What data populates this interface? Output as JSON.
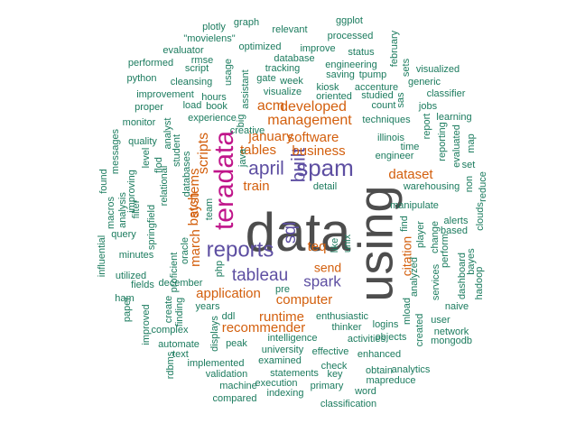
{
  "chart_data": {
    "type": "wordcloud",
    "colors": {
      "big": "#4d4d4d",
      "magenta": "#c0158a",
      "purple": "#5e4fa2",
      "orange": "#d35f0d",
      "teal": "#1b7b5e"
    },
    "words": [
      {
        "text": "data",
        "tier": "big"
      },
      {
        "text": "using",
        "tier": "big"
      },
      {
        "text": "teradata",
        "tier": "magenta"
      },
      {
        "text": "spam",
        "tier": "purple"
      },
      {
        "text": "reports",
        "tier": "purple"
      },
      {
        "text": "built",
        "tier": "purple"
      },
      {
        "text": "april",
        "tier": "purple"
      },
      {
        "text": "sql",
        "tier": "purple"
      },
      {
        "text": "tableau",
        "tier": "purple"
      },
      {
        "text": "spark",
        "tier": "purple"
      },
      {
        "text": "developed",
        "tier": "orange"
      },
      {
        "text": "management",
        "tier": "orange"
      },
      {
        "text": "acm",
        "tier": "orange"
      },
      {
        "text": "january",
        "tier": "orange"
      },
      {
        "text": "software",
        "tier": "orange"
      },
      {
        "text": "business",
        "tier": "orange"
      },
      {
        "text": "tables",
        "tier": "orange"
      },
      {
        "text": "scripts",
        "tier": "orange"
      },
      {
        "text": "dataset",
        "tier": "orange"
      },
      {
        "text": "train",
        "tier": "orange"
      },
      {
        "text": "systems",
        "tier": "orange"
      },
      {
        "text": "batch",
        "tier": "orange"
      },
      {
        "text": "march",
        "tier": "orange"
      },
      {
        "text": "teq",
        "tier": "orange"
      },
      {
        "text": "send",
        "tier": "orange"
      },
      {
        "text": "citation",
        "tier": "orange"
      },
      {
        "text": "application",
        "tier": "orange"
      },
      {
        "text": "computer",
        "tier": "orange"
      },
      {
        "text": "runtime",
        "tier": "orange"
      },
      {
        "text": "recommender",
        "tier": "orange"
      },
      {
        "text": "plotly",
        "tier": "teal"
      },
      {
        "text": "graph",
        "tier": "teal"
      },
      {
        "text": "relevant",
        "tier": "teal"
      },
      {
        "text": "ggplot",
        "tier": "teal"
      },
      {
        "text": "\"movielens\"",
        "tier": "teal"
      },
      {
        "text": "optimized",
        "tier": "teal"
      },
      {
        "text": "improve",
        "tier": "teal"
      },
      {
        "text": "processed",
        "tier": "teal"
      },
      {
        "text": "evaluator",
        "tier": "teal"
      },
      {
        "text": "rmse",
        "tier": "teal"
      },
      {
        "text": "usage",
        "tier": "teal"
      },
      {
        "text": "gate",
        "tier": "teal"
      },
      {
        "text": "database",
        "tier": "teal"
      },
      {
        "text": "status",
        "tier": "teal"
      },
      {
        "text": "february",
        "tier": "teal"
      },
      {
        "text": "sets",
        "tier": "teal"
      },
      {
        "text": "performed",
        "tier": "teal"
      },
      {
        "text": "script",
        "tier": "teal"
      },
      {
        "text": "tracking",
        "tier": "teal"
      },
      {
        "text": "engineering",
        "tier": "teal"
      },
      {
        "text": "python",
        "tier": "teal"
      },
      {
        "text": "saving",
        "tier": "teal"
      },
      {
        "text": "tpump",
        "tier": "teal"
      },
      {
        "text": "visualized",
        "tier": "teal"
      },
      {
        "text": "cleansing",
        "tier": "teal"
      },
      {
        "text": "week",
        "tier": "teal"
      },
      {
        "text": "kiosk",
        "tier": "teal"
      },
      {
        "text": "accenture",
        "tier": "teal"
      },
      {
        "text": "generic",
        "tier": "teal"
      },
      {
        "text": "assistant",
        "tier": "teal"
      },
      {
        "text": "visualize",
        "tier": "teal"
      },
      {
        "text": "oriented",
        "tier": "teal"
      },
      {
        "text": "studied",
        "tier": "teal"
      },
      {
        "text": "improvement",
        "tier": "teal"
      },
      {
        "text": "hours",
        "tier": "teal"
      },
      {
        "text": "sas",
        "tier": "teal"
      },
      {
        "text": "classifier",
        "tier": "teal"
      },
      {
        "text": "proper",
        "tier": "teal"
      },
      {
        "text": "load",
        "tier": "teal"
      },
      {
        "text": "book",
        "tier": "teal"
      },
      {
        "text": "count",
        "tier": "teal"
      },
      {
        "text": "jobs",
        "tier": "teal"
      },
      {
        "text": "experience",
        "tier": "teal"
      },
      {
        "text": "creative",
        "tier": "teal"
      },
      {
        "text": "techniques",
        "tier": "teal"
      },
      {
        "text": "report",
        "tier": "teal"
      },
      {
        "text": "learning",
        "tier": "teal"
      },
      {
        "text": "monitor",
        "tier": "teal"
      },
      {
        "text": "analyst",
        "tier": "teal"
      },
      {
        "text": "big",
        "tier": "teal"
      },
      {
        "text": "illinois",
        "tier": "teal"
      },
      {
        "text": "time",
        "tier": "teal"
      },
      {
        "text": "reporting",
        "tier": "teal"
      },
      {
        "text": "evaluated",
        "tier": "teal"
      },
      {
        "text": "map",
        "tier": "teal"
      },
      {
        "text": "quality",
        "tier": "teal"
      },
      {
        "text": "student",
        "tier": "teal"
      },
      {
        "text": "engineer",
        "tier": "teal"
      },
      {
        "text": "set",
        "tier": "teal"
      },
      {
        "text": "messages",
        "tier": "teal"
      },
      {
        "text": "level",
        "tier": "teal"
      },
      {
        "text": "flod",
        "tier": "teal"
      },
      {
        "text": "java",
        "tier": "teal"
      },
      {
        "text": "non",
        "tier": "teal"
      },
      {
        "text": "reduce",
        "tier": "teal"
      },
      {
        "text": "found",
        "tier": "teal"
      },
      {
        "text": "improving",
        "tier": "teal"
      },
      {
        "text": "relational",
        "tier": "teal"
      },
      {
        "text": "databases",
        "tier": "teal"
      },
      {
        "text": "warehousing",
        "tier": "teal"
      },
      {
        "text": "detail",
        "tier": "teal"
      },
      {
        "text": "macros",
        "tier": "teal"
      },
      {
        "text": "analysis",
        "tier": "teal"
      },
      {
        "text": "filter",
        "tier": "teal"
      },
      {
        "text": "team",
        "tier": "teal"
      },
      {
        "text": "manipulate",
        "tier": "teal"
      },
      {
        "text": "find",
        "tier": "teal"
      },
      {
        "text": "alerts",
        "tier": "teal"
      },
      {
        "text": "clouds",
        "tier": "teal"
      },
      {
        "text": "query",
        "tier": "teal"
      },
      {
        "text": "springfield",
        "tier": "teal"
      },
      {
        "text": "player",
        "tier": "teal"
      },
      {
        "text": "change",
        "tier": "teal"
      },
      {
        "text": "based",
        "tier": "teal"
      },
      {
        "text": "influential",
        "tier": "teal"
      },
      {
        "text": "minutes",
        "tier": "teal"
      },
      {
        "text": "oracle",
        "tier": "teal"
      },
      {
        "text": "like",
        "tier": "teal"
      },
      {
        "text": "unix",
        "tier": "teal"
      },
      {
        "text": "perform",
        "tier": "teal"
      },
      {
        "text": "bayes",
        "tier": "teal"
      },
      {
        "text": "utilized",
        "tier": "teal"
      },
      {
        "text": "proficient",
        "tier": "teal"
      },
      {
        "text": "fields",
        "tier": "teal"
      },
      {
        "text": "php",
        "tier": "teal"
      },
      {
        "text": "analyzed",
        "tier": "teal"
      },
      {
        "text": "services",
        "tier": "teal"
      },
      {
        "text": "dashboard",
        "tier": "teal"
      },
      {
        "text": "hadoop",
        "tier": "teal"
      },
      {
        "text": "ham",
        "tier": "teal"
      },
      {
        "text": "december",
        "tier": "teal"
      },
      {
        "text": "pre",
        "tier": "teal"
      },
      {
        "text": "paper",
        "tier": "teal"
      },
      {
        "text": "create",
        "tier": "teal"
      },
      {
        "text": "years",
        "tier": "teal"
      },
      {
        "text": "enthusiastic",
        "tier": "teal"
      },
      {
        "text": "mload",
        "tier": "teal"
      },
      {
        "text": "user",
        "tier": "teal"
      },
      {
        "text": "naive",
        "tier": "teal"
      },
      {
        "text": "improved",
        "tier": "teal"
      },
      {
        "text": "finding",
        "tier": "teal"
      },
      {
        "text": "ddl",
        "tier": "teal"
      },
      {
        "text": "thinker",
        "tier": "teal"
      },
      {
        "text": "logins",
        "tier": "teal"
      },
      {
        "text": "network",
        "tier": "teal"
      },
      {
        "text": "complex",
        "tier": "teal"
      },
      {
        "text": "displays",
        "tier": "teal"
      },
      {
        "text": "intelligence",
        "tier": "teal"
      },
      {
        "text": "activities",
        "tier": "teal"
      },
      {
        "text": "objects",
        "tier": "teal"
      },
      {
        "text": "created",
        "tier": "teal"
      },
      {
        "text": "mongodb",
        "tier": "teal"
      },
      {
        "text": "automate",
        "tier": "teal"
      },
      {
        "text": "peak",
        "tier": "teal"
      },
      {
        "text": "university",
        "tier": "teal"
      },
      {
        "text": "effective",
        "tier": "teal"
      },
      {
        "text": "enhanced",
        "tier": "teal"
      },
      {
        "text": "rdbms",
        "tier": "teal"
      },
      {
        "text": "text",
        "tier": "teal"
      },
      {
        "text": "implemented",
        "tier": "teal"
      },
      {
        "text": "examined",
        "tier": "teal"
      },
      {
        "text": "check",
        "tier": "teal"
      },
      {
        "text": "obtain",
        "tier": "teal"
      },
      {
        "text": "analytics",
        "tier": "teal"
      },
      {
        "text": "validation",
        "tier": "teal"
      },
      {
        "text": "statements",
        "tier": "teal"
      },
      {
        "text": "key",
        "tier": "teal"
      },
      {
        "text": "mapreduce",
        "tier": "teal"
      },
      {
        "text": "machine",
        "tier": "teal"
      },
      {
        "text": "execution",
        "tier": "teal"
      },
      {
        "text": "primary",
        "tier": "teal"
      },
      {
        "text": "compared",
        "tier": "teal"
      },
      {
        "text": "indexing",
        "tier": "teal"
      },
      {
        "text": "word",
        "tier": "teal"
      },
      {
        "text": "classification",
        "tier": "teal"
      }
    ]
  }
}
